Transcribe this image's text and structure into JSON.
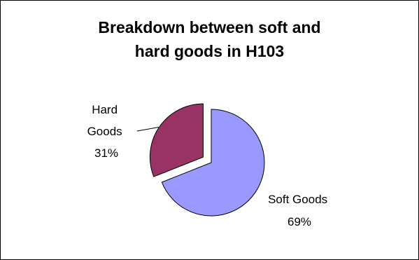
{
  "chart_data": {
    "type": "pie",
    "title_lines": [
      "Breakdown between soft and",
      "hard goods in H103"
    ],
    "slices": [
      {
        "label_lines": [
          "Soft Goods",
          "69%"
        ],
        "value": 69,
        "color": "#9999ff"
      },
      {
        "label_lines": [
          "Hard",
          "Goods",
          "31%"
        ],
        "value": 31,
        "color": "#993366",
        "exploded": true
      }
    ],
    "legend": "none"
  }
}
